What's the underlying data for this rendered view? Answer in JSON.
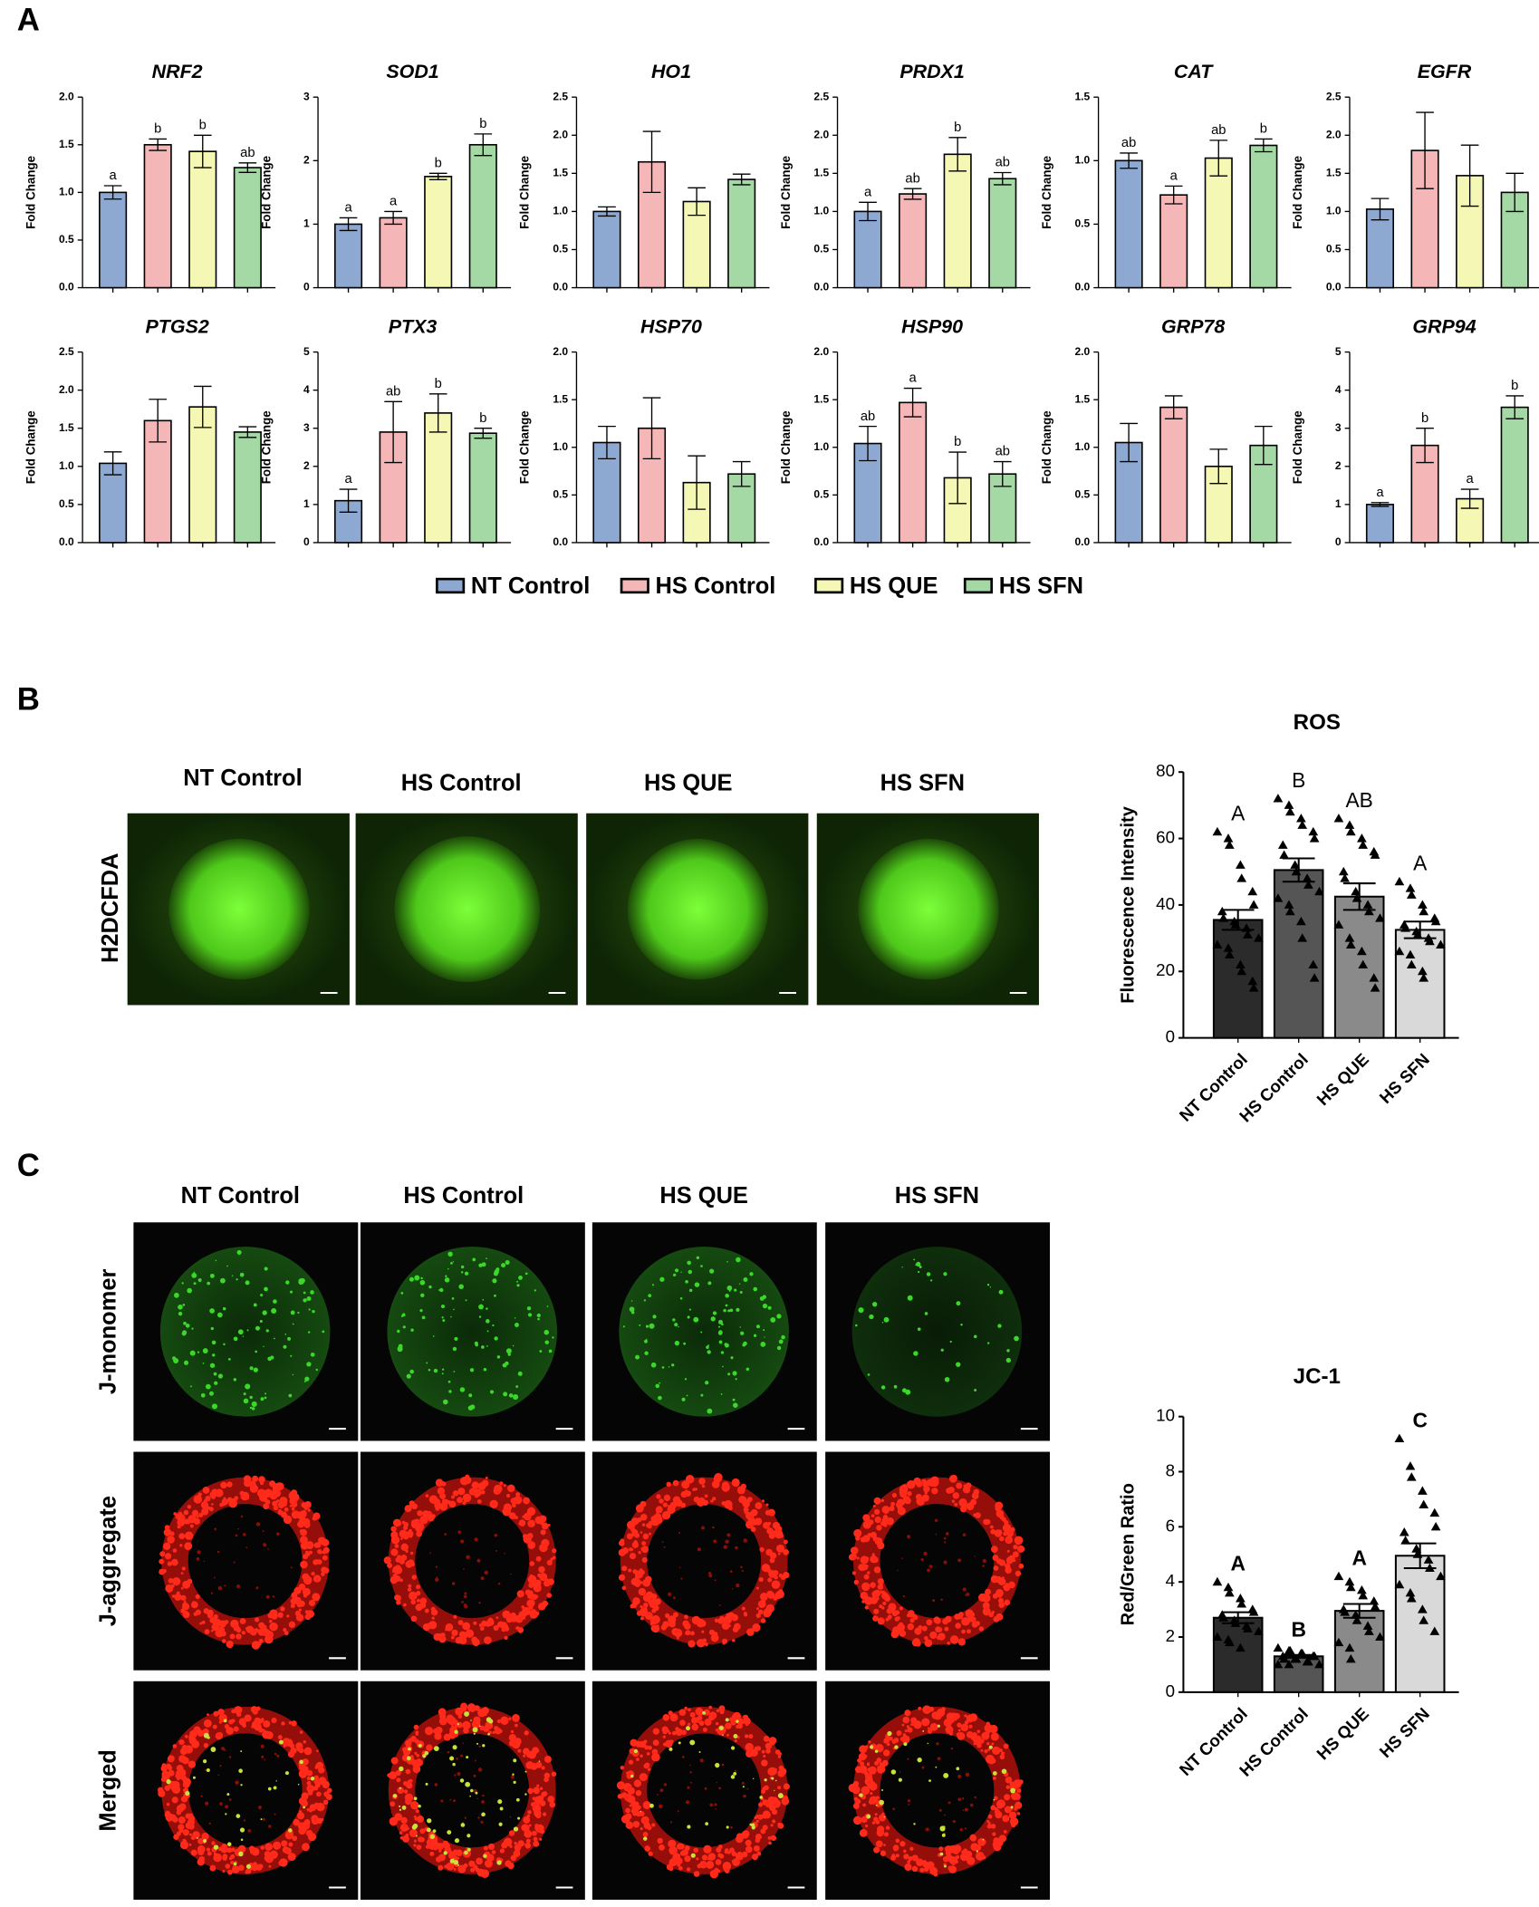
{
  "panel_labels": [
    "A",
    "B",
    "C"
  ],
  "legend": [
    {
      "name": "NT Control",
      "color": "#8ea9d1"
    },
    {
      "name": "HS Control",
      "color": "#f4b6b6"
    },
    {
      "name": "HS QUE",
      "color": "#f5f7b5"
    },
    {
      "name": "HS SFN",
      "color": "#a4d8a4"
    }
  ],
  "panel_b": {
    "columns": [
      "NT Control",
      "HS Control",
      "HS QUE",
      "HS SFN"
    ],
    "rows": [
      "H2DCFDA"
    ]
  },
  "panel_c": {
    "columns": [
      "NT Control",
      "HS Control",
      "HS QUE",
      "HS SFN"
    ],
    "rows": [
      "J-monomer",
      "J-aggregate",
      "Merged"
    ]
  },
  "chart_data": [
    {
      "type": "bar",
      "title": "NRF2",
      "ylabel": "Fold Change",
      "categories": [
        null,
        null,
        null,
        null
      ],
      "values": [
        1.0,
        1.5,
        1.43,
        1.26
      ],
      "errors": [
        0.07,
        0.06,
        0.17,
        0.05
      ],
      "annotations": [
        "a",
        "b",
        "b",
        "ab"
      ],
      "ylim": [
        0,
        2
      ],
      "yticks": [
        {
          "value": 0,
          "label": "0.0"
        },
        0.5,
        {
          "value": 1,
          "label": "1.0"
        },
        1.5,
        {
          "value": 2,
          "label": "2.0"
        }
      ]
    },
    {
      "type": "bar",
      "title": "SOD1",
      "ylabel": "Fold Change",
      "categories": [
        null,
        null,
        null,
        null
      ],
      "values": [
        1.0,
        1.1,
        1.75,
        2.25
      ],
      "errors": [
        0.1,
        0.1,
        0.05,
        0.17
      ],
      "annotations": [
        "a",
        "a",
        "b",
        "b"
      ],
      "ylim": [
        0,
        3
      ],
      "yticks": [
        0,
        1,
        2,
        3
      ]
    },
    {
      "type": "bar",
      "title": "HO1",
      "ylabel": "Fold Change",
      "categories": [
        null,
        null,
        null,
        null
      ],
      "values": [
        1.0,
        1.65,
        1.13,
        1.42
      ],
      "errors": [
        0.06,
        0.4,
        0.18,
        0.07
      ],
      "ylim": [
        0,
        2.5
      ],
      "yticks": [
        {
          "value": 0,
          "label": "0.0"
        },
        0.5,
        {
          "value": 1,
          "label": "1.0"
        },
        1.5,
        {
          "value": 2,
          "label": "2.0"
        },
        2.5
      ]
    },
    {
      "type": "bar",
      "title": "PRDX1",
      "ylabel": "Fold Change",
      "categories": [
        null,
        null,
        null,
        null
      ],
      "values": [
        1.0,
        1.23,
        1.75,
        1.43
      ],
      "errors": [
        0.12,
        0.07,
        0.22,
        0.08
      ],
      "annotations": [
        "a",
        "ab",
        "b",
        "ab"
      ],
      "ylim": [
        0,
        2.5
      ],
      "yticks": [
        {
          "value": 0,
          "label": "0.0"
        },
        0.5,
        {
          "value": 1,
          "label": "1.0"
        },
        1.5,
        {
          "value": 2,
          "label": "2.0"
        },
        2.5
      ]
    },
    {
      "type": "bar",
      "title": "CAT",
      "ylabel": "Fold Change",
      "categories": [
        null,
        null,
        null,
        null
      ],
      "values": [
        1.0,
        0.73,
        1.02,
        1.12
      ],
      "errors": [
        0.06,
        0.07,
        0.14,
        0.05
      ],
      "annotations": [
        "ab",
        "a",
        "ab",
        "b"
      ],
      "ylim": [
        0,
        1.5
      ],
      "yticks": [
        {
          "value": 0,
          "label": "0.0"
        },
        0.5,
        {
          "value": 1,
          "label": "1.0"
        },
        1.5
      ]
    },
    {
      "type": "bar",
      "title": "EGFR",
      "ylabel": "Fold Change",
      "categories": [
        null,
        null,
        null,
        null
      ],
      "values": [
        1.03,
        1.8,
        1.47,
        1.25
      ],
      "errors": [
        0.14,
        0.5,
        0.4,
        0.25
      ],
      "ylim": [
        0,
        2.5
      ],
      "yticks": [
        {
          "value": 0,
          "label": "0.0"
        },
        0.5,
        {
          "value": 1,
          "label": "1.0"
        },
        1.5,
        {
          "value": 2,
          "label": "2.0"
        },
        2.5
      ]
    },
    {
      "type": "bar",
      "title": "PTGS2",
      "ylabel": "Fold Change",
      "categories": [
        null,
        null,
        null,
        null
      ],
      "values": [
        1.04,
        1.6,
        1.78,
        1.45
      ],
      "errors": [
        0.15,
        0.28,
        0.27,
        0.07
      ],
      "ylim": [
        0,
        2.5
      ],
      "yticks": [
        {
          "value": 0,
          "label": "0.0"
        },
        0.5,
        {
          "value": 1,
          "label": "1.0"
        },
        1.5,
        {
          "value": 2,
          "label": "2.0"
        },
        2.5
      ]
    },
    {
      "type": "bar",
      "title": "PTX3",
      "ylabel": "Fold Change",
      "categories": [
        null,
        null,
        null,
        null
      ],
      "values": [
        1.1,
        2.9,
        3.4,
        2.87
      ],
      "errors": [
        0.3,
        0.8,
        0.5,
        0.13
      ],
      "annotations": [
        "a",
        "ab",
        "b",
        "b"
      ],
      "ylim": [
        0,
        5
      ],
      "yticks": [
        0,
        1,
        2,
        3,
        4,
        5
      ]
    },
    {
      "type": "bar",
      "title": "HSP70",
      "ylabel": "Fold Change",
      "categories": [
        null,
        null,
        null,
        null
      ],
      "values": [
        1.05,
        1.2,
        0.63,
        0.72
      ],
      "errors": [
        0.17,
        0.32,
        0.28,
        0.13
      ],
      "ylim": [
        0,
        2
      ],
      "yticks": [
        {
          "value": 0,
          "label": "0.0"
        },
        0.5,
        {
          "value": 1,
          "label": "1.0"
        },
        1.5,
        {
          "value": 2,
          "label": "2.0"
        }
      ]
    },
    {
      "type": "bar",
      "title": "HSP90",
      "ylabel": "Fold Change",
      "categories": [
        null,
        null,
        null,
        null
      ],
      "values": [
        1.04,
        1.47,
        0.68,
        0.72
      ],
      "errors": [
        0.18,
        0.15,
        0.27,
        0.13
      ],
      "annotations": [
        "ab",
        "a",
        "b",
        "ab"
      ],
      "ylim": [
        0,
        2
      ],
      "yticks": [
        {
          "value": 0,
          "label": "0.0"
        },
        0.5,
        {
          "value": 1,
          "label": "1.0"
        },
        1.5,
        {
          "value": 2,
          "label": "2.0"
        }
      ]
    },
    {
      "type": "bar",
      "title": "GRP78",
      "ylabel": "Fold Change",
      "categories": [
        null,
        null,
        null,
        null
      ],
      "values": [
        1.05,
        1.42,
        0.8,
        1.02
      ],
      "errors": [
        0.2,
        0.12,
        0.18,
        0.2
      ],
      "ylim": [
        0,
        2
      ],
      "yticks": [
        {
          "value": 0,
          "label": "0.0"
        },
        0.5,
        {
          "value": 1,
          "label": "1.0"
        },
        1.5,
        {
          "value": 2,
          "label": "2.0"
        }
      ]
    },
    {
      "type": "bar",
      "title": "GRP94",
      "ylabel": "Fold Change",
      "categories": [
        null,
        null,
        null,
        null
      ],
      "values": [
        1.0,
        2.55,
        1.15,
        3.55
      ],
      "errors": [
        0.05,
        0.45,
        0.25,
        0.3
      ],
      "annotations": [
        "a",
        "b",
        "a",
        "b"
      ],
      "ylim": [
        0,
        5
      ],
      "yticks": [
        0,
        1,
        2,
        3,
        4,
        5
      ]
    },
    {
      "type": "bar",
      "title": "ROS",
      "ylabel": "Fluorescence Intensity",
      "categories": [
        "NT Control",
        "HS Control",
        "HS QUE",
        "HS SFN"
      ],
      "values": [
        35.5,
        50.5,
        42.5,
        32.5
      ],
      "errors": [
        3,
        3.5,
        4,
        2.5
      ],
      "annotations": [
        "A",
        "B",
        "AB",
        "A"
      ],
      "colors": [
        "#2b2b2b",
        "#555555",
        "#8a8a8a",
        "#d9d9d9"
      ],
      "ylim": [
        0,
        80
      ],
      "yticks": [
        0,
        20,
        40,
        60,
        80
      ],
      "points": [
        [
          62,
          60,
          58,
          52,
          48,
          44,
          40,
          38,
          36,
          35,
          34,
          33,
          31,
          30,
          28,
          27,
          25,
          22,
          20,
          17,
          15
        ],
        [
          72,
          70,
          68,
          66,
          64,
          62,
          60,
          58,
          55,
          52,
          50,
          48,
          46,
          44,
          42,
          40,
          38,
          35,
          30,
          22,
          18
        ],
        [
          66,
          64,
          62,
          60,
          58,
          56,
          55,
          50,
          48,
          44,
          42,
          40,
          38,
          36,
          34,
          30,
          28,
          26,
          22,
          18,
          15
        ],
        [
          47,
          45,
          43,
          40,
          38,
          36,
          35,
          34,
          33,
          32,
          31,
          30,
          29,
          28,
          26,
          25,
          22,
          20,
          18
        ]
      ]
    },
    {
      "type": "bar",
      "title": "JC-1",
      "ylabel": "Red/Green Ratio",
      "categories": [
        "NT Control",
        "HS Control",
        "HS QUE",
        "HS SFN"
      ],
      "values": [
        2.7,
        1.3,
        2.95,
        4.95
      ],
      "errors": [
        0.2,
        0.05,
        0.25,
        0.45
      ],
      "annotations": [
        "A",
        "B",
        "A",
        "C"
      ],
      "colors": [
        "#2b2b2b",
        "#555555",
        "#8a8a8a",
        "#d9d9d9"
      ],
      "ylim": [
        0,
        10
      ],
      "yticks": [
        0,
        2,
        4,
        6,
        8,
        10
      ],
      "points": [
        [
          4.0,
          3.8,
          3.6,
          3.4,
          3.2,
          3.0,
          2.9,
          2.8,
          2.7,
          2.6,
          2.5,
          2.4,
          2.3,
          2.2,
          2.0,
          1.9,
          1.8,
          1.6
        ],
        [
          1.6,
          1.5,
          1.5,
          1.4,
          1.4,
          1.3,
          1.3,
          1.3,
          1.2,
          1.2,
          1.2,
          1.1,
          1.1,
          1.0,
          1.0,
          1.0
        ],
        [
          4.2,
          4.0,
          3.8,
          3.7,
          3.5,
          3.3,
          3.1,
          3.0,
          2.9,
          2.8,
          2.6,
          2.4,
          2.2,
          2.0,
          1.8,
          1.6,
          1.2
        ],
        [
          9.2,
          8.2,
          7.8,
          7.3,
          6.8,
          6.5,
          6.0,
          5.8,
          5.5,
          5.2,
          5.0,
          4.8,
          4.5,
          4.2,
          3.9,
          3.6,
          3.4,
          3.0,
          2.6,
          2.2
        ]
      ]
    }
  ]
}
